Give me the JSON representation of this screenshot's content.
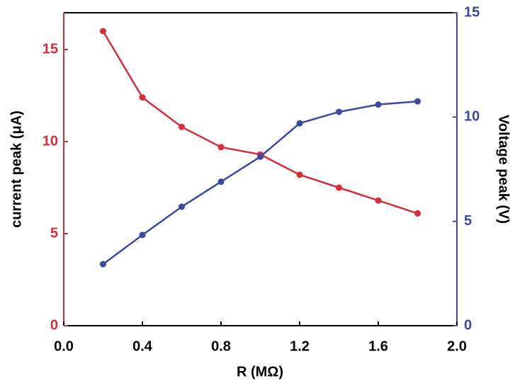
{
  "chart_data": {
    "type": "line",
    "x_label": "R (MΩ)",
    "y_label": "current peak (μA)",
    "y2_label": "Voltage peak (V)",
    "x": [
      0.2,
      0.4,
      0.6,
      0.8,
      1.0,
      1.2,
      1.4,
      1.6,
      1.8
    ],
    "xlim": [
      0,
      2
    ],
    "xticks": [
      {
        "value": 0,
        "label": "0.0"
      },
      0.4,
      0.8,
      1.2,
      1.6,
      {
        "value": 2,
        "label": "2.0"
      }
    ],
    "ylim": [
      0,
      17
    ],
    "yticks": [
      0,
      5,
      10,
      15
    ],
    "y2lim": [
      0,
      15
    ],
    "y2ticks": [
      0,
      5,
      10,
      15
    ],
    "y_color": "#d62e3a",
    "y2_color": "#3b4aa0",
    "series": [
      {
        "name": "current peak",
        "color": "#d62e3a",
        "axis": "y",
        "values": [
          16.0,
          12.4,
          10.8,
          9.7,
          9.3,
          8.2,
          7.5,
          6.8,
          6.1
        ]
      },
      {
        "name": "Voltage peak",
        "color": "#3b4aa0",
        "axis": "y2",
        "values": [
          2.95,
          4.35,
          5.7,
          6.9,
          8.1,
          9.7,
          10.25,
          10.6,
          10.75
        ]
      }
    ]
  }
}
